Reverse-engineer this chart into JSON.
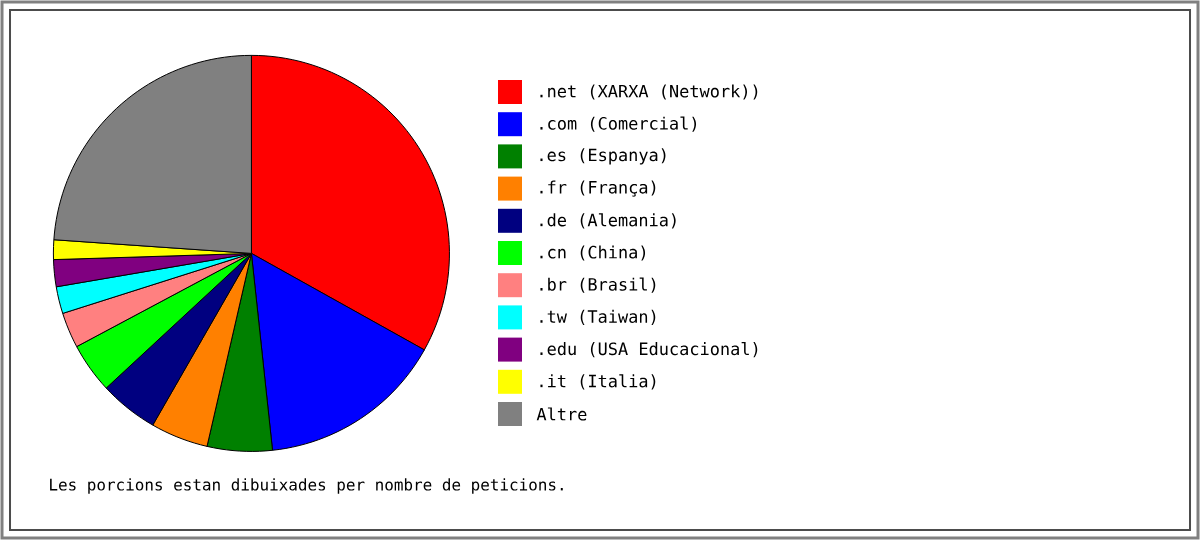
{
  "chart_data": {
    "type": "pie",
    "categories": [
      ".net (XARXA (Network))",
      ".com (Comercial)",
      ".es (Espanya)",
      ".fr (França)",
      ".de (Alemania)",
      ".cn (China)",
      ".br (Brasil)",
      ".tw (Taiwan)",
      ".edu (USA Educacional)",
      ".it (Italia)",
      "Altre"
    ],
    "values": [
      33.1,
      15.2,
      5.3,
      4.7,
      4.8,
      4.1,
      2.9,
      2.2,
      2.2,
      1.6,
      23.9
    ],
    "colors": [
      "#ff0000",
      "#0000ff",
      "#008000",
      "#ff8000",
      "#000080",
      "#00ff00",
      "#ff8080",
      "#00ffff",
      "#800080",
      "#ffff00",
      "#808080"
    ],
    "legend": "right",
    "annotations": [
      "Les porcions estan dibuixades per nombre de peticions."
    ]
  }
}
